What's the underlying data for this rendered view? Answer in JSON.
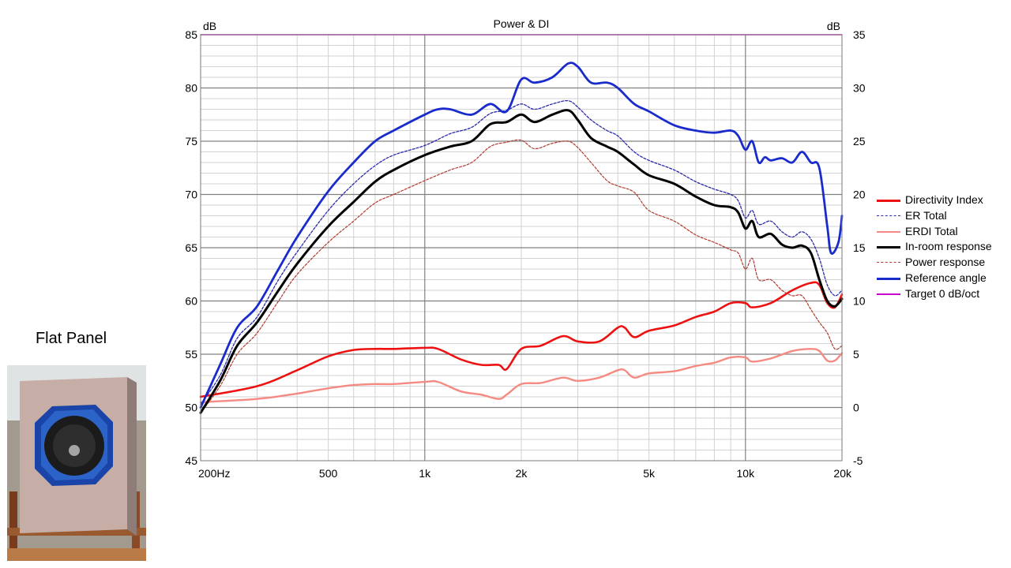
{
  "photo": {
    "caption": "Flat Panel"
  },
  "chart_data": {
    "type": "line",
    "title": "Power & DI",
    "xlabel": "",
    "ylabel_left": "dB",
    "ylabel_right": "dB",
    "x_scale": "log",
    "xlim": [
      200,
      20000
    ],
    "ylim_left": [
      45,
      85
    ],
    "ylim_right": [
      -5,
      35
    ],
    "x_ticks": [
      {
        "value": 200,
        "label": "200Hz"
      },
      {
        "value": 500,
        "label": "500"
      },
      {
        "value": 1000,
        "label": "1k"
      },
      {
        "value": 2000,
        "label": "2k"
      },
      {
        "value": 5000,
        "label": "5k"
      },
      {
        "value": 10000,
        "label": "10k"
      },
      {
        "value": 20000,
        "label": "20k"
      }
    ],
    "y_ticks_left": [
      85,
      80,
      75,
      70,
      65,
      60,
      55,
      50,
      45
    ],
    "y_ticks_right": [
      35,
      30,
      25,
      20,
      15,
      10,
      5,
      0,
      -5
    ],
    "grid": true,
    "legend_position": "right",
    "series": [
      {
        "name": "Directivity Index",
        "axis": "right",
        "color": "#ee1111",
        "width": 2.6,
        "dash": "",
        "x": [
          200,
          300,
          400,
          500,
          600,
          700,
          800,
          1000,
          1100,
          1300,
          1500,
          1700,
          1800,
          2000,
          2300,
          2700,
          3000,
          3500,
          4000,
          4200,
          4500,
          5000,
          6000,
          7000,
          8000,
          9000,
          10000,
          10500,
          12000,
          14000,
          16000,
          17000,
          18000,
          19000,
          20000
        ],
        "y": [
          1.0,
          2.0,
          3.5,
          4.8,
          5.4,
          5.5,
          5.5,
          5.6,
          5.5,
          4.5,
          4.0,
          4.0,
          3.6,
          5.5,
          5.8,
          6.7,
          6.2,
          6.2,
          7.5,
          7.5,
          6.6,
          7.2,
          7.7,
          8.5,
          9.0,
          9.8,
          9.8,
          9.4,
          9.8,
          11.0,
          11.7,
          11.5,
          9.8,
          9.4,
          10.6
        ]
      },
      {
        "name": "ER Total",
        "axis": "left",
        "color": "#2b2baa",
        "width": 1.3,
        "dash": "3,2",
        "x": [
          200,
          230,
          260,
          300,
          350,
          400,
          500,
          600,
          700,
          800,
          1000,
          1200,
          1400,
          1600,
          1800,
          2000,
          2200,
          2500,
          2800,
          3000,
          3300,
          3700,
          4000,
          4500,
          5000,
          6000,
          7000,
          8000,
          9000,
          9500,
          10000,
          10500,
          11000,
          12000,
          13000,
          14000,
          15000,
          16000,
          17000,
          18000,
          19000,
          20000
        ],
        "y": [
          50.3,
          53.0,
          56.5,
          58.5,
          62.0,
          64.6,
          68.5,
          71.0,
          72.7,
          73.7,
          74.6,
          75.7,
          76.3,
          77.6,
          77.9,
          78.5,
          78.0,
          78.5,
          78.8,
          78.2,
          77.0,
          76.0,
          75.5,
          74.0,
          73.2,
          72.3,
          71.2,
          70.5,
          70.0,
          69.4,
          67.8,
          68.5,
          67.2,
          67.5,
          66.5,
          66.0,
          66.5,
          65.8,
          64.0,
          61.5,
          60.5,
          61.0
        ]
      },
      {
        "name": "ERDI Total",
        "axis": "right",
        "color": "#f58a82",
        "width": 2.4,
        "dash": "",
        "x": [
          200,
          300,
          400,
          500,
          600,
          700,
          800,
          1000,
          1100,
          1300,
          1500,
          1700,
          1800,
          2000,
          2300,
          2700,
          3000,
          3500,
          4000,
          4200,
          4500,
          5000,
          6000,
          7000,
          8000,
          9000,
          10000,
          10500,
          12000,
          14000,
          16000,
          17000,
          18000,
          19000,
          20000
        ],
        "y": [
          0.5,
          0.8,
          1.3,
          1.8,
          2.1,
          2.2,
          2.2,
          2.4,
          2.4,
          1.5,
          1.2,
          0.8,
          1.2,
          2.2,
          2.3,
          2.8,
          2.5,
          2.8,
          3.5,
          3.5,
          2.8,
          3.2,
          3.4,
          3.9,
          4.2,
          4.7,
          4.7,
          4.3,
          4.6,
          5.3,
          5.5,
          5.3,
          4.4,
          4.4,
          5.1
        ]
      },
      {
        "name": "In-room response",
        "axis": "left",
        "color": "#000000",
        "width": 3,
        "dash": "",
        "x": [
          200,
          230,
          260,
          300,
          350,
          400,
          500,
          600,
          700,
          800,
          1000,
          1200,
          1400,
          1600,
          1800,
          2000,
          2200,
          2500,
          2800,
          3000,
          3300,
          3700,
          4000,
          4500,
          5000,
          6000,
          7000,
          8000,
          9000,
          9500,
          10000,
          10500,
          11000,
          12000,
          13000,
          14000,
          15000,
          16000,
          17000,
          18000,
          19000,
          20000
        ],
        "y": [
          49.5,
          52.5,
          55.8,
          58.0,
          61.0,
          63.5,
          67.0,
          69.3,
          71.2,
          72.3,
          73.7,
          74.5,
          75.0,
          76.6,
          76.8,
          77.5,
          76.8,
          77.5,
          77.9,
          77.0,
          75.3,
          74.5,
          74.0,
          72.8,
          71.8,
          71.0,
          69.8,
          69.0,
          68.8,
          68.3,
          66.8,
          67.5,
          66.0,
          66.3,
          65.3,
          65.0,
          65.2,
          64.5,
          62.0,
          60.0,
          59.5,
          60.2
        ]
      },
      {
        "name": "Power response",
        "axis": "left",
        "color": "#b03a2e",
        "width": 1.2,
        "dash": "3,2",
        "x": [
          200,
          230,
          260,
          300,
          350,
          400,
          500,
          600,
          700,
          800,
          1000,
          1200,
          1400,
          1600,
          1800,
          2000,
          2200,
          2500,
          2800,
          3000,
          3300,
          3700,
          4000,
          4500,
          5000,
          6000,
          7000,
          8000,
          9000,
          9500,
          10000,
          10500,
          11000,
          12000,
          13000,
          14000,
          15000,
          16000,
          17000,
          18000,
          19000,
          20000
        ],
        "y": [
          49.5,
          52.0,
          55.0,
          57.0,
          60.0,
          62.5,
          65.5,
          67.5,
          69.2,
          70.0,
          71.3,
          72.3,
          73.0,
          74.5,
          74.9,
          75.1,
          74.3,
          74.8,
          75.0,
          74.4,
          73.0,
          71.3,
          70.8,
          70.2,
          68.5,
          67.5,
          66.2,
          65.5,
          64.8,
          64.5,
          63.0,
          64.0,
          62.0,
          62.0,
          61.0,
          60.5,
          60.5,
          59.2,
          58.0,
          57.0,
          55.5,
          55.8
        ]
      },
      {
        "name": "Reference angle",
        "axis": "left",
        "color": "#1a2bcc",
        "width": 2.8,
        "dash": "",
        "x": [
          200,
          230,
          260,
          300,
          350,
          400,
          500,
          600,
          700,
          800,
          1000,
          1100,
          1200,
          1400,
          1600,
          1800,
          2000,
          2200,
          2500,
          2800,
          3000,
          3300,
          3700,
          4000,
          4500,
          5000,
          6000,
          7000,
          8000,
          9000,
          9500,
          10000,
          10500,
          11000,
          11500,
          12000,
          13000,
          14000,
          15000,
          16000,
          17000,
          18000,
          18500,
          19500,
          20000
        ],
        "y": [
          50.0,
          54.0,
          57.5,
          59.5,
          63.0,
          66.0,
          70.3,
          73.0,
          75.0,
          76.0,
          77.5,
          78.0,
          78.0,
          77.5,
          78.5,
          77.8,
          80.8,
          80.5,
          81.0,
          82.3,
          82.0,
          80.5,
          80.5,
          80.0,
          78.5,
          77.8,
          76.5,
          76.0,
          75.8,
          76.0,
          75.5,
          74.2,
          75.0,
          73.0,
          73.5,
          73.2,
          73.4,
          73.0,
          74.0,
          73.0,
          72.5,
          67.0,
          64.5,
          65.5,
          68.0
        ]
      },
      {
        "name": "Target 0 dB/oct",
        "axis": "left",
        "color": "#cc00cc",
        "width": 1.5,
        "dash": "",
        "x": [
          200,
          20000
        ],
        "y": [
          85,
          85
        ]
      }
    ]
  }
}
